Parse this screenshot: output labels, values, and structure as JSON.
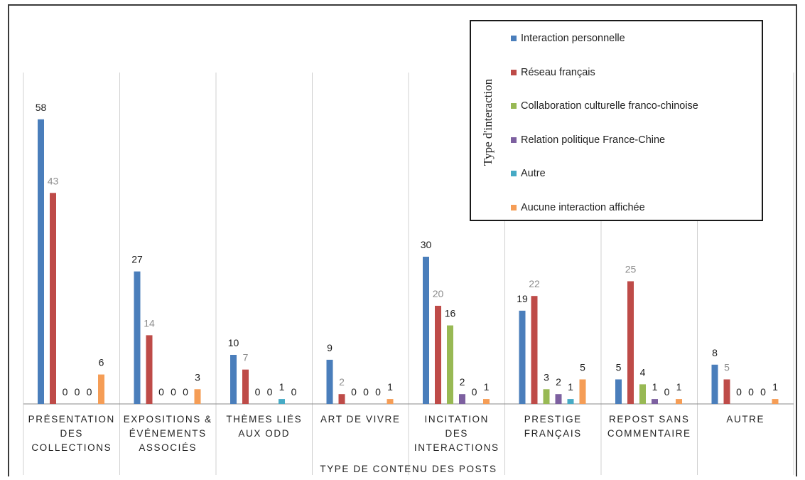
{
  "chart_data": {
    "type": "bar",
    "xlabel": "TYPE DE CONTENU DES POSTS",
    "categories": [
      [
        "PRÉSENTATION",
        "DES",
        "COLLECTIONS"
      ],
      [
        "EXPOSITIONS &",
        "ÉVÉNEMENTS",
        "ASSOCIÉS"
      ],
      [
        "THÈMES LIÉS",
        "AUX ODD"
      ],
      [
        "ART DE VIVRE"
      ],
      [
        "INCITATION",
        "DES",
        "INTERACTIONS"
      ],
      [
        "PRESTIGE",
        "FRANÇAIS"
      ],
      [
        "REPOST SANS",
        "COMMENTAIRE"
      ],
      [
        "AUTRE"
      ]
    ],
    "legend_title": "Type d'interaction",
    "legend_position": "top-right",
    "grid": "vertical separators between categories",
    "ylim": [
      0,
      60
    ],
    "series": [
      {
        "name": "Interaction personnelle",
        "color": "#4a7ebb",
        "values": [
          58,
          27,
          10,
          9,
          30,
          19,
          5,
          8
        ]
      },
      {
        "name": "Réseau français",
        "color": "#be4b48",
        "values": [
          43,
          14,
          7,
          2,
          20,
          22,
          25,
          5
        ]
      },
      {
        "name": "Collaboration culturelle franco-chinoise",
        "color": "#98b954",
        "values": [
          0,
          0,
          0,
          0,
          16,
          3,
          4,
          0
        ]
      },
      {
        "name": "Relation politique France-Chine",
        "color": "#7d60a0",
        "values": [
          0,
          0,
          0,
          0,
          2,
          2,
          1,
          0
        ]
      },
      {
        "name": "Autre",
        "color": "#46aac5",
        "values": [
          0,
          0,
          1,
          0,
          0,
          1,
          0,
          0
        ]
      },
      {
        "name": "Aucune interaction affichée",
        "color": "#f59d56",
        "values": [
          6,
          3,
          0,
          1,
          1,
          5,
          1,
          1
        ]
      }
    ],
    "data_label_colors": {
      "dark": "#1a1a1a",
      "grey": "#8c8c8c",
      "grey_labels": [
        [
          0,
          1
        ],
        [
          1,
          1
        ],
        [
          2,
          1
        ],
        [
          3,
          1
        ],
        [
          4,
          1
        ],
        [
          5,
          1
        ],
        [
          6,
          1
        ],
        [
          7,
          1
        ]
      ]
    }
  }
}
